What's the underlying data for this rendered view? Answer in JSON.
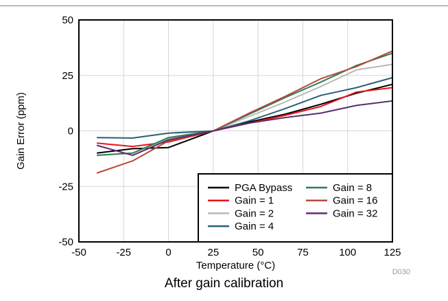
{
  "chart_data": {
    "type": "line",
    "title": "",
    "caption": "After gain calibration",
    "xlabel": "Temperature (°C)",
    "ylabel": "Gain Error (ppm)",
    "xlim": [
      -50,
      125
    ],
    "ylim": [
      -50,
      50
    ],
    "xticks": [
      -50,
      -25,
      0,
      25,
      50,
      75,
      100,
      125
    ],
    "yticks": [
      -50,
      -25,
      0,
      25,
      50
    ],
    "grid": true,
    "legend_position": "bottom-right",
    "figure_id": "D030",
    "x": [
      -40,
      -20,
      0,
      25,
      45,
      65,
      85,
      105,
      125
    ],
    "series": [
      {
        "name": "PGA Bypass",
        "color": "#000000",
        "values": [
          -10,
          -8,
          -7.5,
          0,
          4,
          7.5,
          12,
          17,
          21
        ]
      },
      {
        "name": "Gain = 1",
        "color": "#e8141b",
        "values": [
          -5.5,
          -7,
          -5,
          0,
          3.5,
          7,
          11,
          17.5,
          19.5
        ]
      },
      {
        "name": "Gain = 2",
        "color": "#b8b8b8",
        "values": [
          -11,
          -10,
          -3.5,
          0,
          6.5,
          13,
          20,
          27.5,
          30
        ]
      },
      {
        "name": "Gain = 4",
        "color": "#2a5f73",
        "values": [
          -3,
          -3.2,
          -1,
          0,
          4.5,
          10,
          16,
          19.5,
          24
        ]
      },
      {
        "name": "Gain = 8",
        "color": "#2e7d56",
        "values": [
          -11,
          -10,
          -3,
          0,
          7.5,
          15,
          22,
          29.5,
          35
        ]
      },
      {
        "name": "Gain = 16",
        "color": "#b54a3c",
        "values": [
          -19,
          -13.5,
          -4.5,
          0,
          8,
          15.5,
          23.5,
          29,
          36
        ]
      },
      {
        "name": "Gain = 32",
        "color": "#5c2d6e",
        "values": [
          -6.5,
          -11,
          -4,
          0,
          3.5,
          6,
          8,
          11.5,
          13.5
        ]
      }
    ]
  }
}
